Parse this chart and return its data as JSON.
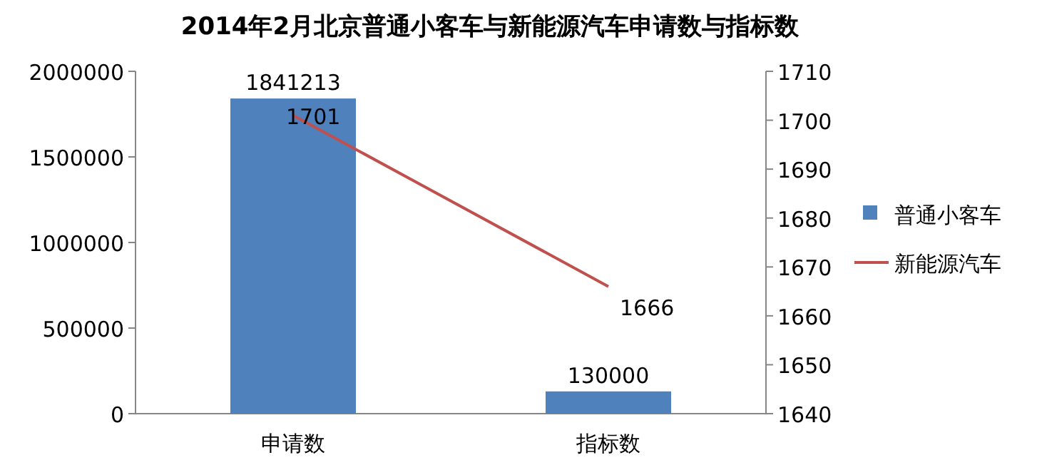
{
  "chart_data": {
    "type": "bar",
    "title": "2014年2月北京普通小客车与新能源汽车申请数与指标数",
    "categories": [
      "申请数",
      "指标数"
    ],
    "series": [
      {
        "name": "普通小客车",
        "color": "#4f81bd",
        "values": [
          1841213,
          130000
        ]
      },
      {
        "name": "新能源汽车",
        "type": "line",
        "axis": "y2",
        "color": "#c0504d",
        "values": [
          1701,
          1666
        ]
      }
    ],
    "ylim": [
      0,
      2000000
    ],
    "yticks": [
      0,
      500000,
      1000000,
      1500000,
      2000000
    ],
    "y2lim": [
      1640,
      1710
    ],
    "y2ticks": [
      1640,
      1650,
      1660,
      1670,
      1680,
      1690,
      1700,
      1710
    ],
    "data_labels": true,
    "legend": "right"
  }
}
